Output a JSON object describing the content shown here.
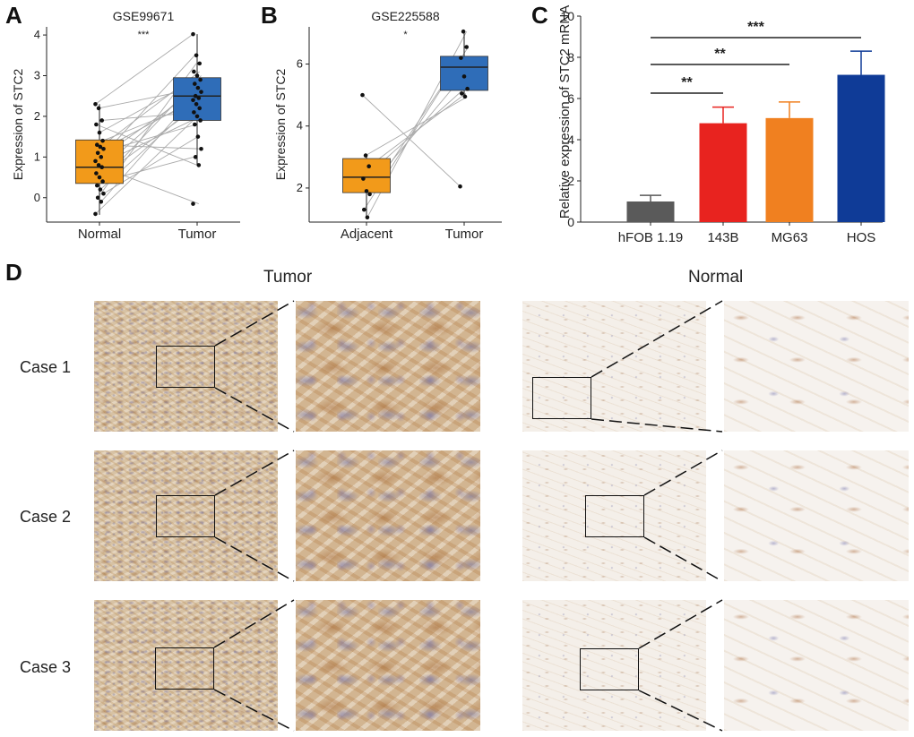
{
  "panel_labels": {
    "a": "A",
    "b": "B",
    "c": "C",
    "d": "D"
  },
  "chart_data": [
    {
      "id": "A",
      "type": "box",
      "title": "GSE99671",
      "significance": "***",
      "ylabel": "Expression of STC2",
      "ylim": [
        -0.6,
        4.2
      ],
      "yticks": [
        0,
        1,
        2,
        3,
        4
      ],
      "categories": [
        "Normal",
        "Tumor"
      ],
      "boxes": [
        {
          "name": "Normal",
          "color": "#f29a1a",
          "q1": 0.35,
          "median": 0.75,
          "q3": 1.42,
          "whisker_low": -0.42,
          "whisker_high": 2.3,
          "points": [
            2.3,
            2.2,
            1.9,
            1.8,
            1.6,
            1.4,
            1.3,
            1.25,
            1.2,
            1.1,
            1.0,
            0.9,
            0.8,
            0.75,
            0.6,
            0.5,
            0.4,
            0.3,
            0.2,
            0.1,
            0.0,
            -0.1,
            -0.4
          ]
        },
        {
          "name": "Tumor",
          "color": "#2f6db8",
          "q1": 1.9,
          "median": 2.5,
          "q3": 2.95,
          "whisker_low": 0.8,
          "whisker_high": 4.02,
          "points": [
            4.02,
            3.5,
            3.3,
            3.1,
            3.0,
            2.9,
            2.8,
            2.7,
            2.6,
            2.5,
            2.45,
            2.4,
            2.3,
            2.2,
            2.1,
            2.0,
            1.9,
            1.8,
            1.5,
            1.2,
            1.0,
            0.8,
            -0.15
          ]
        }
      ]
    },
    {
      "id": "B",
      "type": "box",
      "title": "GSE225588",
      "significance": "*",
      "ylabel": "Expression of STC2",
      "ylim": [
        0.9,
        7.2
      ],
      "yticks": [
        2,
        4,
        6
      ],
      "categories": [
        "Adjacent",
        "Tumor"
      ],
      "boxes": [
        {
          "name": "Adjacent",
          "color": "#f29a1a",
          "q1": 1.85,
          "median": 2.35,
          "q3": 2.95,
          "whisker_low": 1.05,
          "whisker_high": 3.05,
          "points": [
            5.0,
            3.05,
            2.7,
            2.3,
            1.9,
            1.8,
            1.3,
            1.05
          ]
        },
        {
          "name": "Tumor",
          "color": "#2f6db8",
          "q1": 5.15,
          "median": 5.9,
          "q3": 6.25,
          "whisker_low": 4.95,
          "whisker_high": 7.05,
          "points": [
            2.05,
            7.05,
            6.55,
            6.2,
            5.6,
            5.2,
            5.05,
            4.95
          ]
        }
      ]
    },
    {
      "id": "C",
      "type": "bar",
      "ylabel": "Relative expression of STC2 mRNA",
      "ylim": [
        0,
        10
      ],
      "yticks": [
        0,
        2,
        4,
        6,
        8,
        10
      ],
      "categories": [
        "hFOB 1.19",
        "143B",
        "MG63",
        "HOS"
      ],
      "values": [
        1.0,
        4.8,
        5.05,
        7.15
      ],
      "errors": [
        0.3,
        0.78,
        0.78,
        1.15
      ],
      "colors": [
        "#5a5a5a",
        "#e8231f",
        "#f08020",
        "#0f3b97"
      ],
      "brackets": [
        {
          "from": 0,
          "to": 1,
          "label": "**"
        },
        {
          "from": 0,
          "to": 2,
          "label": "**"
        },
        {
          "from": 0,
          "to": 3,
          "label": "***"
        }
      ]
    }
  ],
  "ihc": {
    "headers": {
      "tumor": "Tumor",
      "normal": "Normal"
    },
    "cases": [
      "Case 1",
      "Case 2",
      "Case 3"
    ]
  }
}
